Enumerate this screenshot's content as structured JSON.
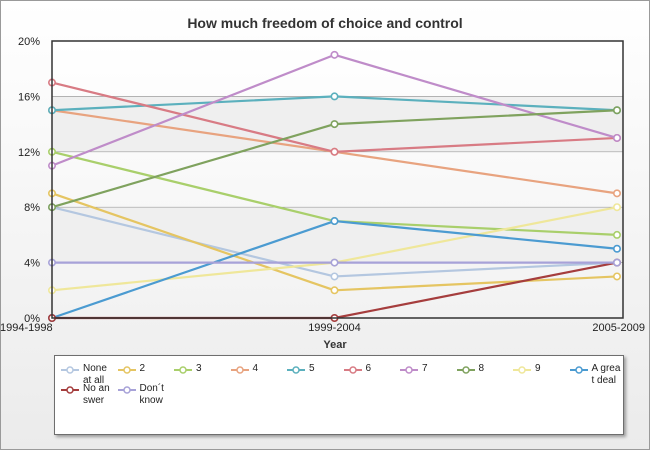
{
  "chart_data": {
    "type": "line",
    "title": "How much freedom of choice and control",
    "xlabel": "Year",
    "ylabel": "",
    "categories": [
      "1994-1998",
      "1999-2004",
      "2005-2009"
    ],
    "ylim": [
      0,
      20
    ],
    "yticks": [
      "0%",
      "4%",
      "8%",
      "12%",
      "16%",
      "20%"
    ],
    "grid": true,
    "legend_position": "bottom",
    "series": [
      {
        "name": "None at all",
        "color": "#b4c7e0",
        "values": [
          8,
          3,
          4
        ]
      },
      {
        "name": "2",
        "color": "#e5c562",
        "values": [
          9,
          2,
          3
        ]
      },
      {
        "name": "3",
        "color": "#a9cf6b",
        "values": [
          12,
          7,
          6
        ]
      },
      {
        "name": "4",
        "color": "#e8a37f",
        "values": [
          15,
          12,
          9
        ]
      },
      {
        "name": "5",
        "color": "#5bb0bd",
        "values": [
          15,
          16,
          15
        ]
      },
      {
        "name": "6",
        "color": "#d87b84",
        "values": [
          17,
          12,
          13
        ]
      },
      {
        "name": "7",
        "color": "#bf8cc9",
        "values": [
          11,
          19,
          13
        ]
      },
      {
        "name": "8",
        "color": "#7fa25e",
        "values": [
          8,
          14,
          15
        ]
      },
      {
        "name": "9",
        "color": "#efe79a",
        "values": [
          2,
          4,
          8
        ]
      },
      {
        "name": "A great deal",
        "color": "#4b9bd1",
        "values": [
          0,
          7,
          5
        ]
      },
      {
        "name": "No answer",
        "color": "#a53d3d",
        "values": [
          0,
          0,
          4
        ]
      },
      {
        "name": "Don´t know",
        "color": "#a7a2d8",
        "values": [
          4,
          4,
          4
        ]
      }
    ]
  }
}
